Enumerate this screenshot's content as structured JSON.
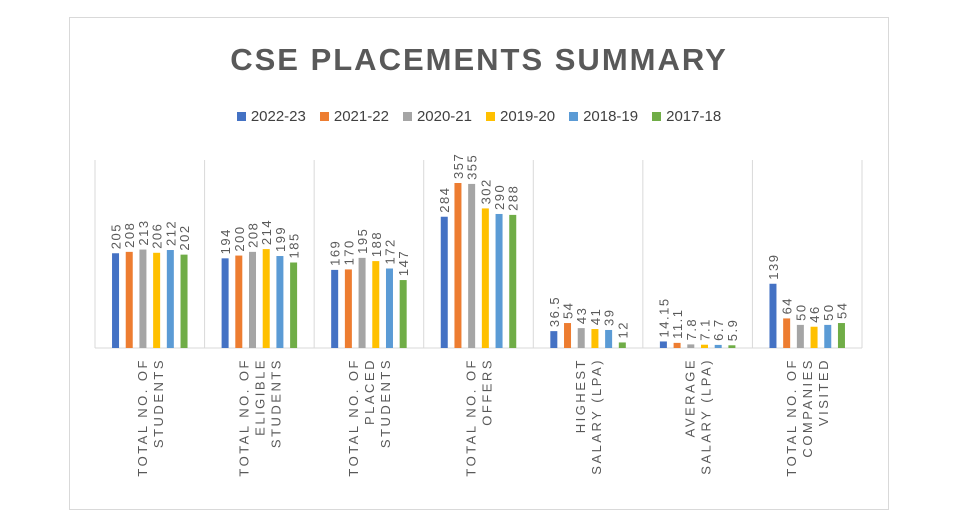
{
  "chart_data": {
    "type": "bar",
    "title": "CSE PLACEMENTS SUMMARY",
    "legend_position": "top",
    "grid": false,
    "categories": [
      [
        "TOTAL NO. OF",
        "STUDENTS"
      ],
      [
        "TOTAL NO. OF",
        "ELIGIBLE",
        "STUDENTS"
      ],
      [
        "TOTAL NO. OF",
        "PLACED",
        "STUDENTS"
      ],
      [
        "TOTAL NO. OF",
        "OFFERS"
      ],
      [
        "HIGHEST",
        "SALARY (LPA)"
      ],
      [
        "AVERAGE",
        "SALARY (LPA)"
      ],
      [
        "TOTAL NO. OF",
        "COMPANIES",
        "VISITED"
      ]
    ],
    "ylim": [
      0,
      400
    ],
    "series": [
      {
        "name": "2022-23",
        "color": "#4472c4",
        "values": [
          205,
          194,
          169,
          284,
          36.5,
          14.15,
          139
        ],
        "labels": [
          "205",
          "194",
          "169",
          "284",
          "36.5",
          "14.15",
          "139"
        ]
      },
      {
        "name": "2021-22",
        "color": "#ed7d31",
        "values": [
          208,
          200,
          170,
          357,
          54,
          11.1,
          64
        ],
        "labels": [
          "208",
          "200",
          "170",
          "357",
          "54",
          "11.1",
          "64"
        ]
      },
      {
        "name": "2020-21",
        "color": "#a5a5a5",
        "values": [
          213,
          208,
          195,
          355,
          43,
          7.8,
          50
        ],
        "labels": [
          "213",
          "208",
          "195",
          "355",
          "43",
          "7.8",
          "50"
        ]
      },
      {
        "name": "2019-20",
        "color": "#ffc000",
        "values": [
          206,
          214,
          188,
          302,
          41,
          7.1,
          46
        ],
        "labels": [
          "206",
          "214",
          "188",
          "302",
          "41",
          "7.1",
          "46"
        ]
      },
      {
        "name": "2018-19",
        "color": "#5b9bd5",
        "values": [
          212,
          199,
          172,
          290,
          39,
          6.7,
          50
        ],
        "labels": [
          "212",
          "199",
          "172",
          "290",
          "39",
          "6.7",
          "50"
        ]
      },
      {
        "name": "2017-18",
        "color": "#70ad47",
        "values": [
          202,
          185,
          147,
          288,
          12,
          5.9,
          54
        ],
        "labels": [
          "202",
          "185",
          "147",
          "288",
          "12",
          "5.9",
          "54"
        ]
      }
    ]
  }
}
